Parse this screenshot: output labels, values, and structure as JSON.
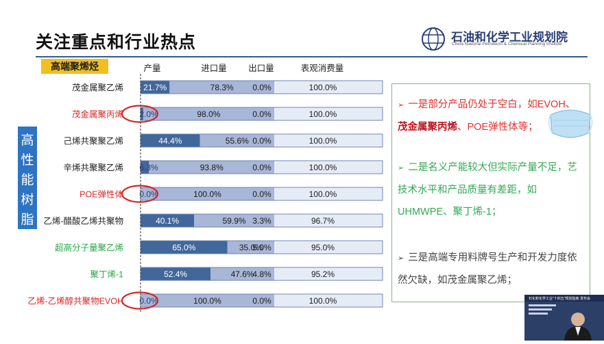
{
  "page": {
    "title": "关注重点和行业热点"
  },
  "logo": {
    "name_cn": "石油和化学工业规划院",
    "name_en": "China National Petroleum & Chemical Planning Institute",
    "icon": "globe-logo-icon"
  },
  "section": {
    "tag": "高端聚烯烃",
    "side_label": "高性能树脂"
  },
  "chart_data": {
    "type": "bar",
    "stacked": true,
    "horizontal": true,
    "column_headers": [
      "产量",
      "进口量",
      "出口量",
      "表观消费量"
    ],
    "categories": [
      "茂金属聚乙烯",
      "茂金属聚丙烯",
      "己烯共聚聚乙烯",
      "辛烯共聚聚乙烯",
      "POE弹性体",
      "乙烯-醋酸乙烯共聚物",
      "超高分子量聚乙烯",
      "聚丁烯-1",
      "乙烯-乙烯醇共聚物EVOH"
    ],
    "category_colors": [
      "#222222",
      "#d62828",
      "#222222",
      "#222222",
      "#d62828",
      "#222222",
      "#2aa84a",
      "#2aa84a",
      "#d62828"
    ],
    "series": [
      {
        "name": "产量",
        "values": [
          21.7,
          2.0,
          44.4,
          6.3,
          0.0,
          40.1,
          65.0,
          52.4,
          0.0
        ],
        "labels": [
          "21.7%",
          "2.0%",
          "44.4%",
          "6.3%",
          "0.0%",
          "40.1%",
          "65.0%",
          "52.4%",
          "0.0%"
        ],
        "color": "#41679b"
      },
      {
        "name": "进口量",
        "values": [
          78.3,
          98.0,
          55.6,
          93.8,
          100.0,
          59.9,
          35.0,
          47.6,
          100.0
        ],
        "labels": [
          "78.3%",
          "98.0%",
          "55.6%",
          "93.8%",
          "100.0%",
          "59.9%",
          "35.0%",
          "47.6%",
          "100.0%"
        ],
        "color": "#a8b6d7"
      },
      {
        "name": "出口量",
        "values": [
          0.0,
          0.0,
          0.0,
          0.0,
          0.0,
          3.3,
          5.0,
          4.8,
          0.0
        ],
        "labels": [
          "0.0%",
          "0.0%",
          "0.0%",
          "0.0%",
          "0.0%",
          "3.3%",
          "5.0%",
          "4.8%",
          "0.0%"
        ],
        "color": "#d4dcec"
      },
      {
        "name": "表观消费量",
        "values": [
          100.0,
          100.0,
          100.0,
          100.0,
          100.0,
          96.7,
          95.0,
          95.2,
          100.0
        ],
        "labels": [
          "100.0%",
          "100.0%",
          "100.0%",
          "100.0%",
          "100.0%",
          "96.7%",
          "95.0%",
          "95.2%",
          "100.0%"
        ],
        "color": "#e6ecf6"
      }
    ],
    "highlighted_categories": [
      1,
      4,
      8
    ],
    "grid": false,
    "legend": "none"
  },
  "notes": [
    {
      "prefix": "一是部分产品仍处于空白，如EVOH、",
      "highlight": "茂金属聚丙烯",
      "suffix": "、POE弹性体等；"
    },
    {
      "text": "二是名义产能较大但实际产量不足，艺技术水平和产品质量有差距，如UHMWPE、聚丁烯-1；"
    },
    {
      "text": "三是高端专用料牌号生产和开发力度依然欠缺，如茂金属聚乙烯；"
    }
  ],
  "bullet_symbol": "➢",
  "decor": {
    "mask_icon": "face-mask-icon"
  },
  "video": {
    "caption": "石化和化学工业\"十四五\"规划指南 发布会"
  }
}
